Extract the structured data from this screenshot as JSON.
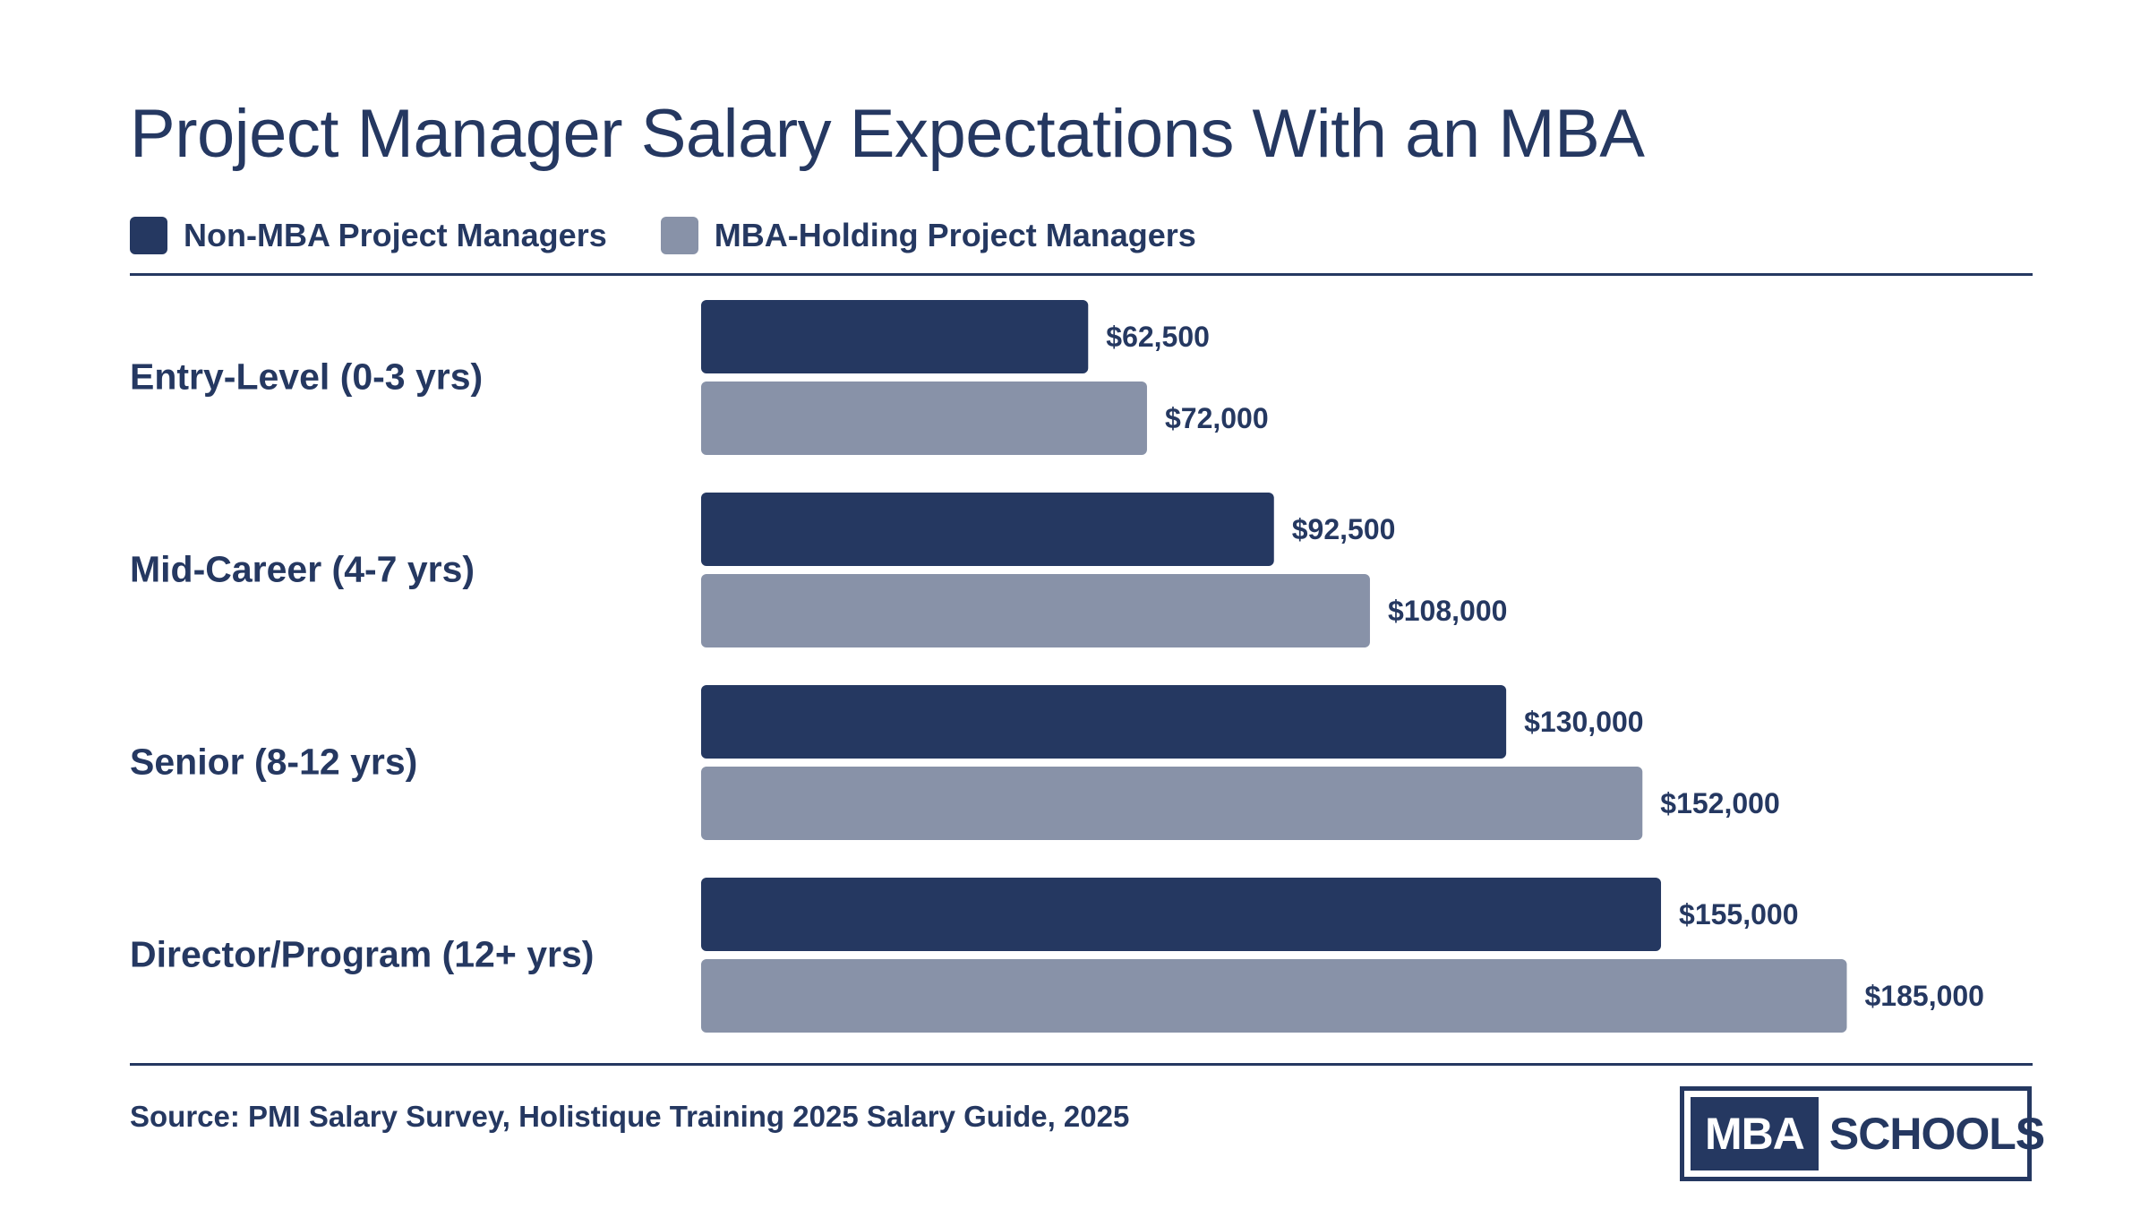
{
  "chart_data": {
    "type": "bar",
    "orientation": "horizontal",
    "title": "Project Manager Salary Expectations With an MBA",
    "categories": [
      "Entry-Level (0-3 yrs)",
      "Mid-Career (4-7 yrs)",
      "Senior (8-12 yrs)",
      "Director/Program (12+ yrs)"
    ],
    "series": [
      {
        "name": "Non-MBA Project Managers",
        "color": "#253861",
        "values": [
          62500,
          92500,
          130000,
          155000
        ],
        "labels": [
          "$62,500",
          "$92,500",
          "$130,000",
          "$155,000"
        ]
      },
      {
        "name": "MBA-Holding Project Managers",
        "color": "#8892a8",
        "values": [
          72000,
          108000,
          152000,
          185000
        ],
        "labels": [
          "$72,000",
          "$108,000",
          "$152,000",
          "$185,000"
        ]
      }
    ],
    "xlim": [
      0,
      215000
    ],
    "legend_position": "top-left",
    "grid": false
  },
  "footer": {
    "source": "Source: PMI Salary Survey, Holistique Training 2025 Salary Guide, 2025"
  },
  "logo": {
    "left_text": "MBA",
    "right_text": "SCHOOLS"
  }
}
